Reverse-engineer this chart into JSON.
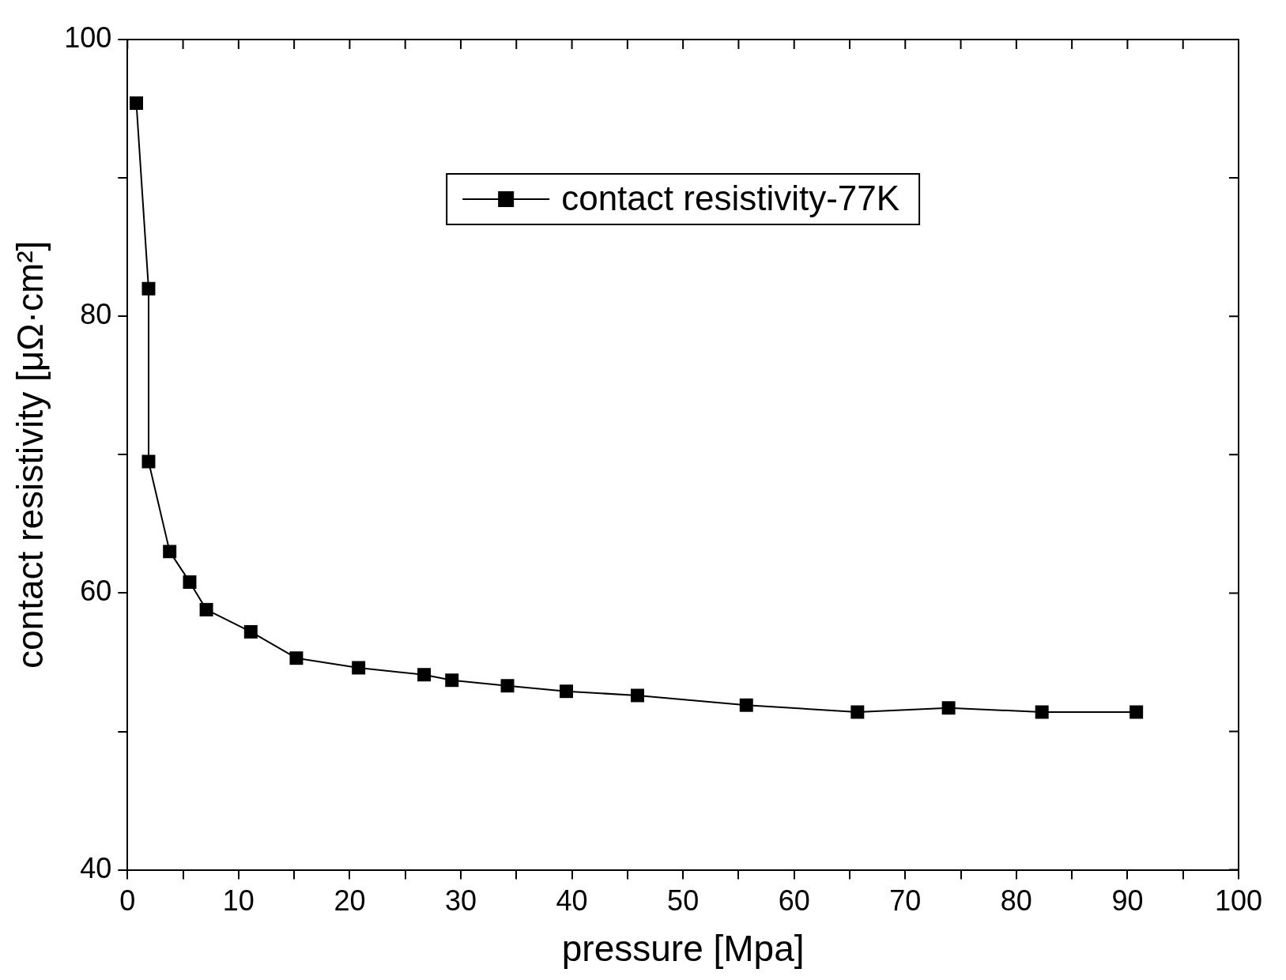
{
  "chart_data": {
    "type": "line",
    "xlabel": "pressure [Mpa]",
    "ylabel": "contact resistivity [μΩ·cm²]",
    "x": [
      0.8,
      1.9,
      1.9,
      3.8,
      5.6,
      7.1,
      11.1,
      15.2,
      20.8,
      26.7,
      29.2,
      34.2,
      39.5,
      45.9,
      55.7,
      65.7,
      73.9,
      82.3,
      90.8
    ],
    "series": [
      {
        "name": "contact resistivity-77K",
        "color": "#000000",
        "values": [
          95.4,
          82.0,
          69.5,
          63.0,
          60.8,
          58.8,
          57.2,
          55.3,
          54.6,
          54.1,
          53.7,
          53.3,
          52.9,
          52.6,
          51.9,
          51.4,
          51.7,
          51.4,
          51.4
        ]
      }
    ],
    "xlim": [
      0,
      100
    ],
    "ylim": [
      40,
      100
    ],
    "xticks": [
      0,
      {
        "value": 5,
        "label": null
      },
      10,
      {
        "value": 15,
        "label": null
      },
      20,
      {
        "value": 25,
        "label": null
      },
      30,
      {
        "value": 35,
        "label": null
      },
      40,
      {
        "value": 45,
        "label": null
      },
      50,
      {
        "value": 55,
        "label": null
      },
      60,
      {
        "value": 65,
        "label": null
      },
      70,
      {
        "value": 75,
        "label": null
      },
      80,
      {
        "value": 85,
        "label": null
      },
      90,
      {
        "value": 95,
        "label": null
      },
      100
    ],
    "yticks": [
      40,
      {
        "value": 50,
        "label": null
      },
      60,
      {
        "value": 70,
        "label": null
      },
      80,
      {
        "value": 90,
        "label": null
      },
      100
    ],
    "grid": false,
    "legend": "top",
    "marker": "square",
    "line_style": "solid"
  }
}
